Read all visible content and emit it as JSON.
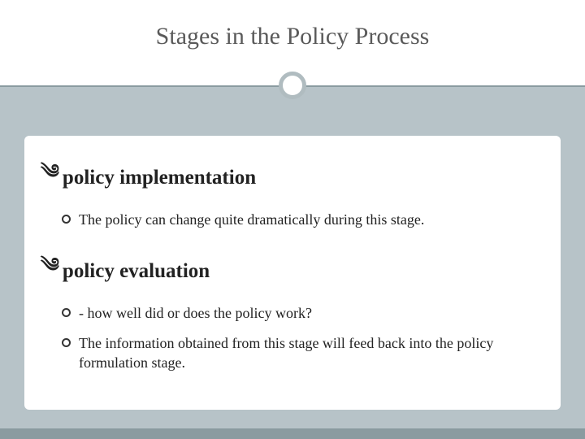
{
  "slide": {
    "title": "Stages in the Policy Process",
    "title_color": "#5a5a5a",
    "title_fontsize": 30,
    "background_color": "#ffffff",
    "content_background": "#b7c3c8",
    "content_panel_background": "#ffffff",
    "divider_color": "#8a9ba0",
    "circle_border_color": "#b0bcc0",
    "footer_bar_color": "#8a9ba0",
    "sections": [
      {
        "heading": "policy implementation",
        "items": [
          "The policy can change quite dramatically during this stage."
        ]
      },
      {
        "heading": "policy evaluation",
        "items": [
          "- how well did or does the policy work?",
          "The information obtained from this stage will feed back into the policy formulation stage."
        ]
      }
    ],
    "heading_fontsize": 25,
    "body_fontsize": 18,
    "text_color": "#222222"
  }
}
